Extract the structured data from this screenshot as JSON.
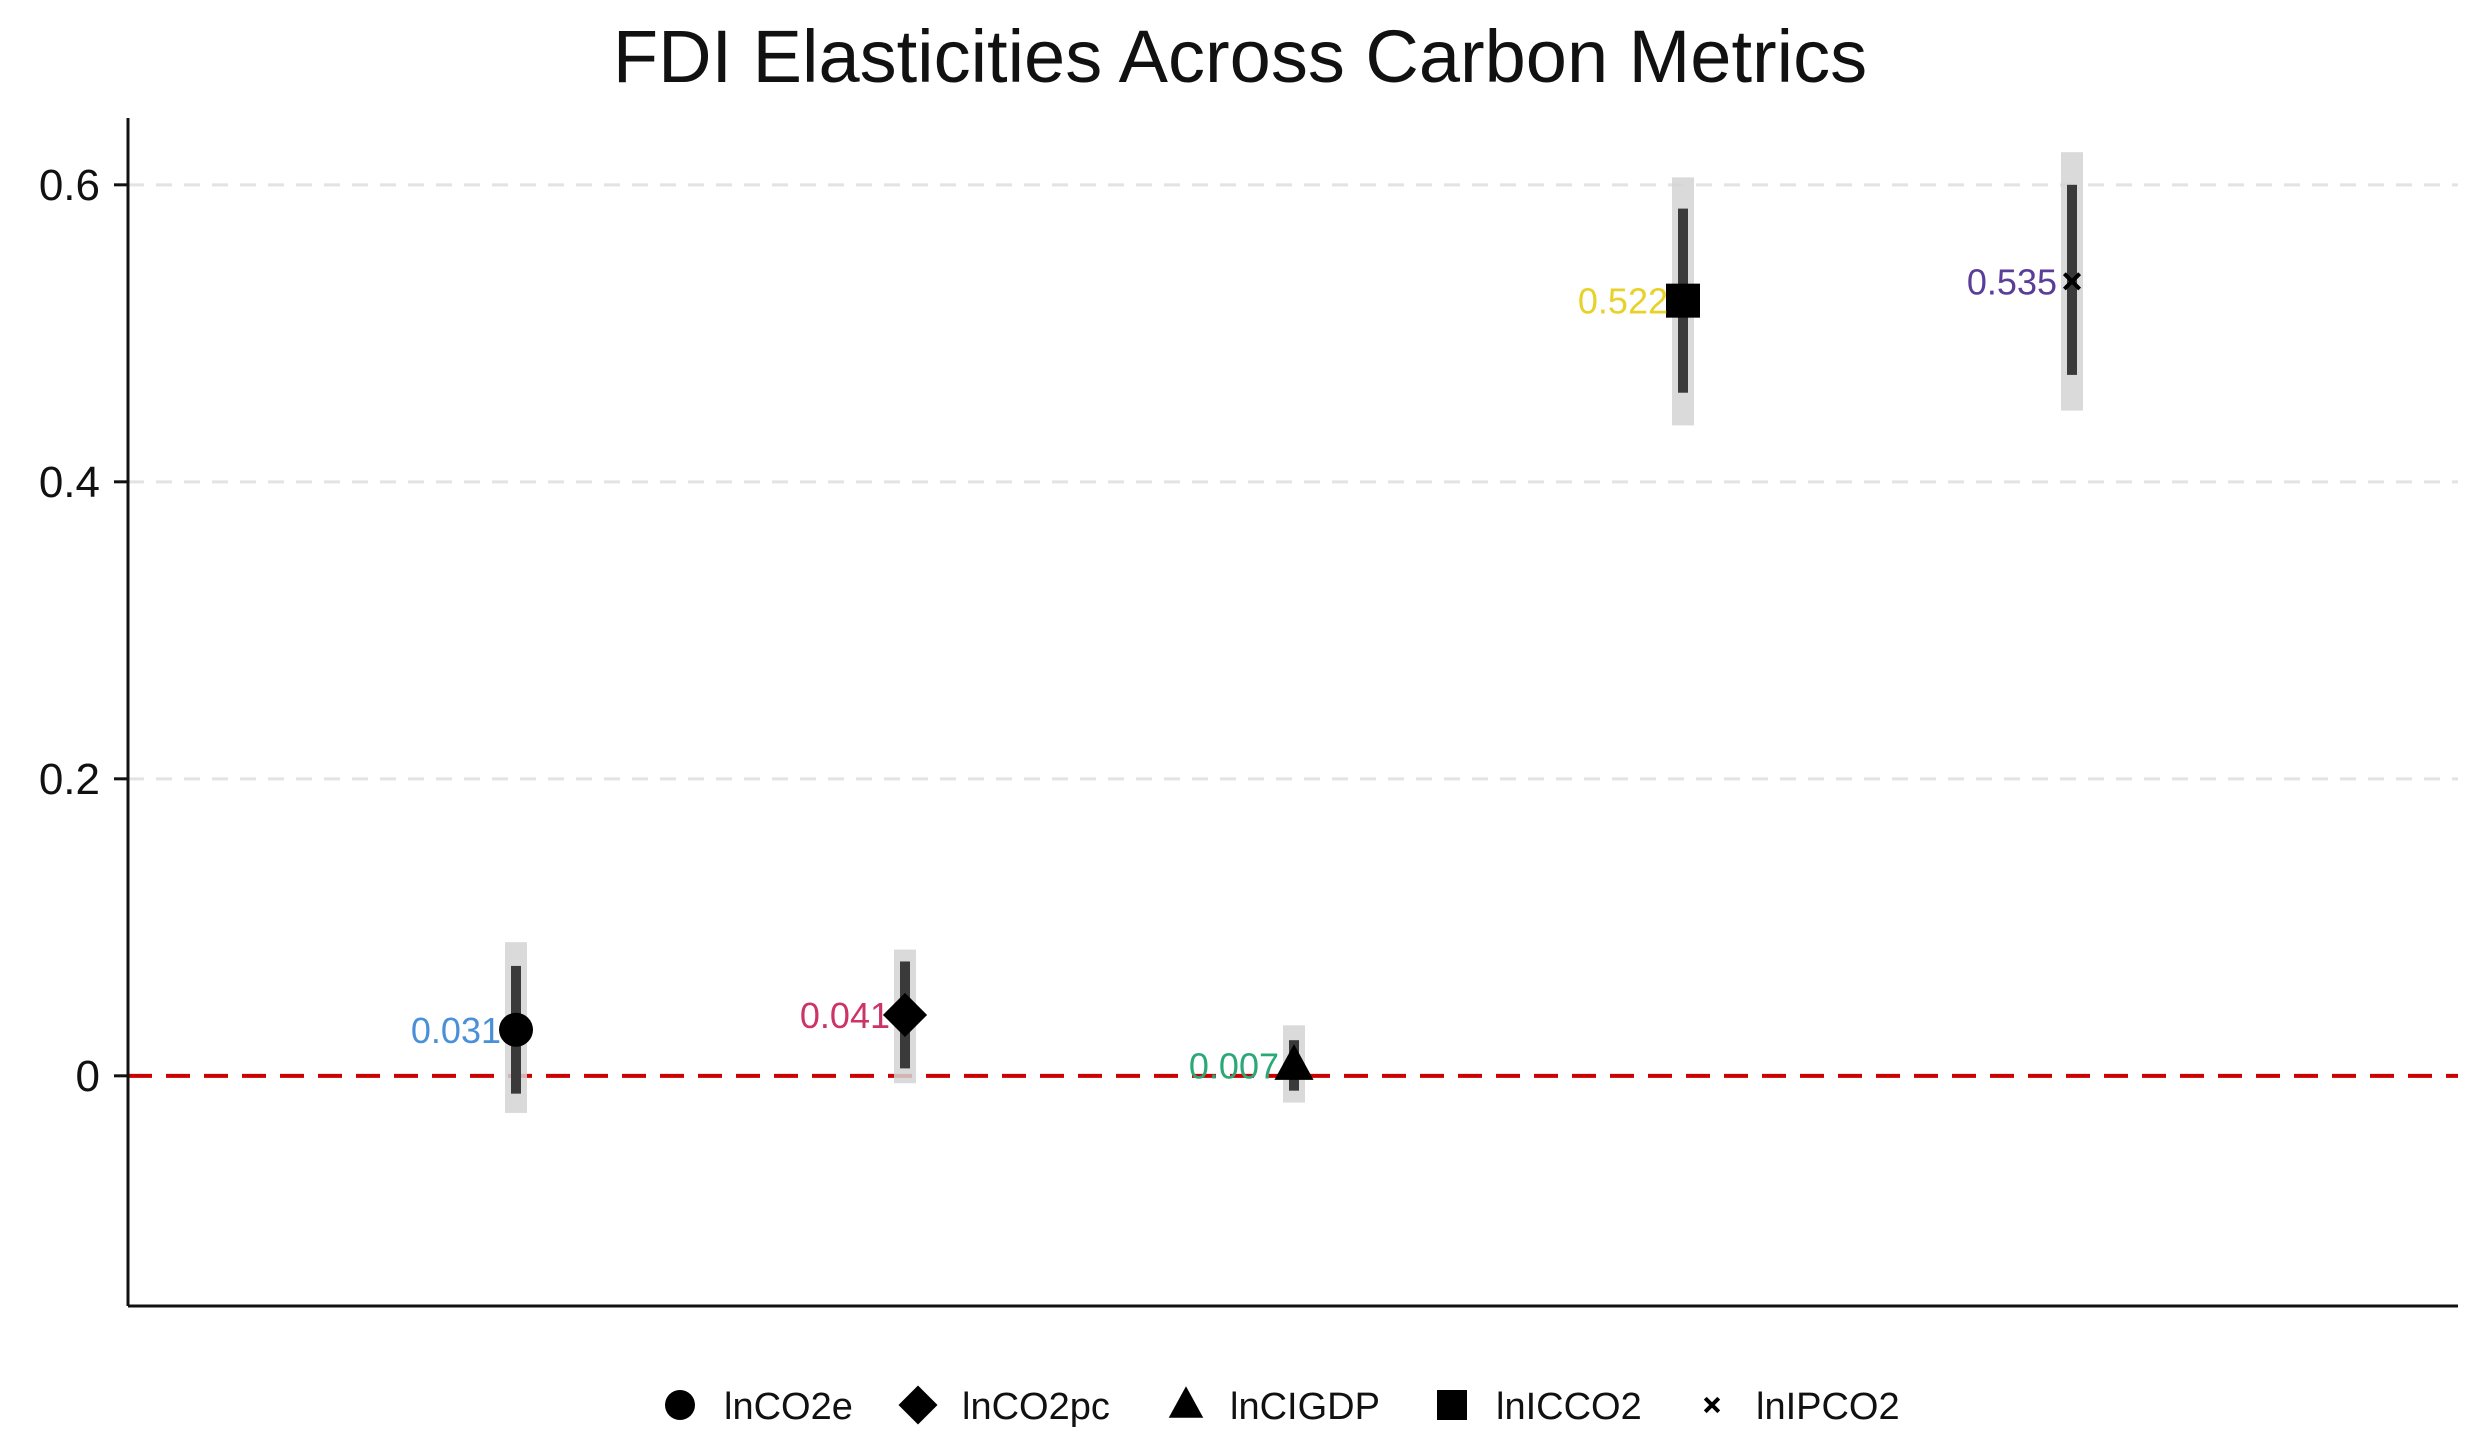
{
  "chart_data": {
    "type": "scatter",
    "title": "FDI Elasticities Across Carbon Metrics",
    "xlabel": "",
    "ylabel": "",
    "ylim": [
      -0.155,
      0.645
    ],
    "y_ticks": [
      {
        "value": 0,
        "label": "0"
      },
      {
        "value": 0.2,
        "label": "0.2"
      },
      {
        "value": 0.4,
        "label": "0.4"
      },
      {
        "value": 0.6,
        "label": "0.6"
      }
    ],
    "grid": "horizontal dashed",
    "reference_line": {
      "y": 0,
      "color": "#cc0000",
      "style": "dashed"
    },
    "legend_position": "bottom",
    "series": [
      {
        "name": "lnCO2e",
        "x": 1,
        "value": 0.031,
        "label": "0.031",
        "marker": "circle",
        "label_color": "#4a90d9",
        "ci_inner": [
          -0.012,
          0.074
        ],
        "ci_outer": [
          -0.025,
          0.09
        ]
      },
      {
        "name": "lnCO2pc",
        "x": 2,
        "value": 0.041,
        "label": "0.041",
        "marker": "diamond",
        "label_color": "#cc3366",
        "ci_inner": [
          0.005,
          0.077
        ],
        "ci_outer": [
          -0.005,
          0.085
        ]
      },
      {
        "name": "lnCIGDP",
        "x": 3,
        "value": 0.007,
        "label": "0.007",
        "marker": "triangle",
        "label_color": "#2aa876",
        "ci_inner": [
          -0.01,
          0.024
        ],
        "ci_outer": [
          -0.018,
          0.034
        ]
      },
      {
        "name": "lnICCO2",
        "x": 4,
        "value": 0.522,
        "label": "0.522",
        "marker": "square",
        "label_color": "#e8d22a",
        "ci_inner": [
          0.46,
          0.584
        ],
        "ci_outer": [
          0.438,
          0.605
        ]
      },
      {
        "name": "lnIPCO2",
        "x": 5,
        "value": 0.535,
        "label": "0.535",
        "marker": "x",
        "label_color": "#5a3d99",
        "ci_inner": [
          0.472,
          0.6
        ],
        "ci_outer": [
          0.448,
          0.622
        ]
      }
    ]
  }
}
